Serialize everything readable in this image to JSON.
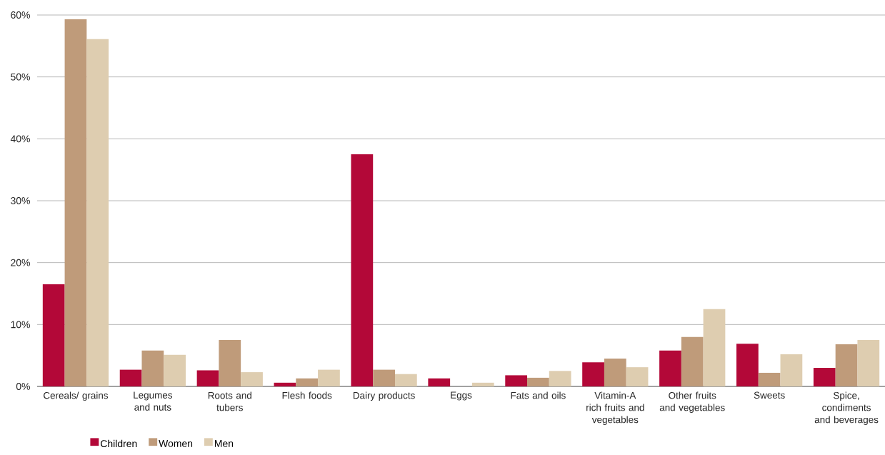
{
  "chart_data": {
    "type": "bar",
    "categories": [
      "Cereals/ grains",
      "Legumes and nuts",
      "Roots and tubers",
      "Flesh foods",
      "Dairy products",
      "Eggs",
      "Fats and oils",
      "Vitamin-A rich fruits and vegetables",
      "Other fruits and vegetables",
      "Sweets",
      "Spice, condiments and beverages"
    ],
    "series": [
      {
        "name": "Children",
        "color": "#b30838",
        "values": [
          16.5,
          2.7,
          2.6,
          0.6,
          37.5,
          1.3,
          1.8,
          3.9,
          5.8,
          6.9,
          3.0
        ]
      },
      {
        "name": "Women",
        "color": "#bf9b7a",
        "values": [
          59.3,
          5.8,
          7.5,
          1.3,
          2.7,
          0,
          1.4,
          4.5,
          8.0,
          2.2,
          6.8
        ]
      },
      {
        "name": "Men",
        "color": "#decdb0",
        "values": [
          56.1,
          5.1,
          2.3,
          2.7,
          2.0,
          0.6,
          2.5,
          3.1,
          12.5,
          5.2,
          7.5
        ]
      }
    ],
    "ylim": [
      0,
      60
    ],
    "yticks": [
      {
        "value": 0,
        "label": "0%"
      },
      {
        "value": 10,
        "label": "10%"
      },
      {
        "value": 20,
        "label": "20%"
      },
      {
        "value": 30,
        "label": "30%"
      },
      {
        "value": 40,
        "label": "40%"
      },
      {
        "value": 50,
        "label": "50%"
      },
      {
        "value": 60,
        "label": "60%"
      }
    ],
    "grid": "y",
    "legend": "bottom left"
  }
}
